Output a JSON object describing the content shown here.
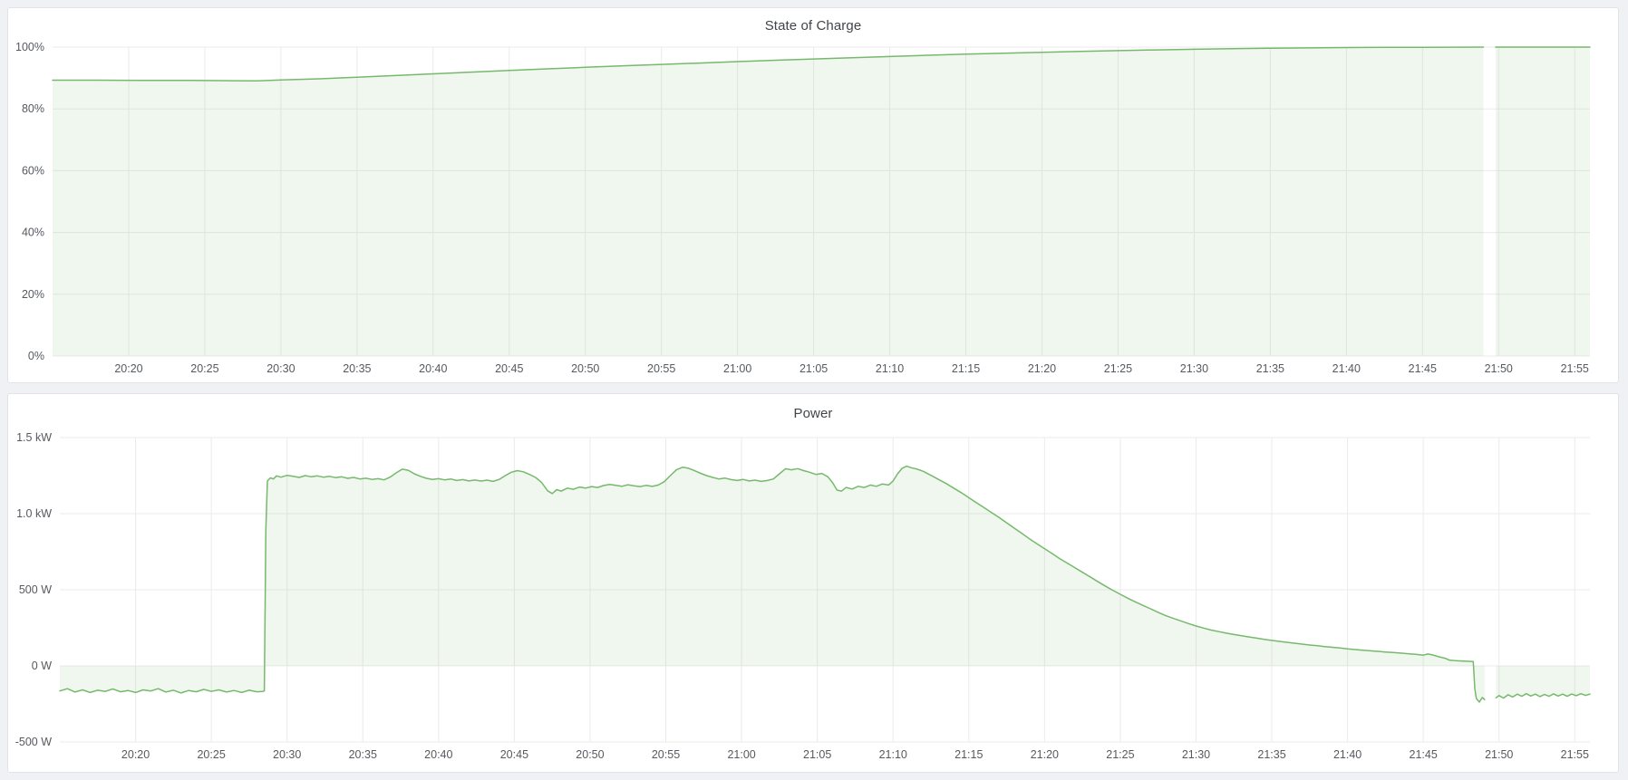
{
  "theme": {
    "page_background": "#f0f1f4",
    "panel_background": "#ffffff",
    "panel_border": "#e0e3e8",
    "grid_color": "#ebebeb",
    "title_color": "#414549",
    "tick_label_color": "#56595f",
    "line_color": "#76b96c",
    "fill_color": "rgba(118,185,108,0.11)"
  },
  "chart_data": [
    {
      "type": "area",
      "title": "State of Charge",
      "unit": "percent",
      "legend": "none",
      "grid": "on",
      "x_time_origin": "20:15",
      "x_domain_minutes": [
        0,
        101
      ],
      "ylim": [
        0,
        100
      ],
      "fill_to": 0,
      "data_gap_time": "21:49",
      "y_ticks": [
        {
          "v": 0,
          "label": "0%"
        },
        {
          "v": 20,
          "label": "20%"
        },
        {
          "v": 40,
          "label": "40%"
        },
        {
          "v": 60,
          "label": "60%"
        },
        {
          "v": 80,
          "label": "80%"
        },
        {
          "v": 100,
          "label": "100%"
        }
      ],
      "x_ticks": [
        {
          "t": 5,
          "label": "20:20"
        },
        {
          "t": 10,
          "label": "20:25"
        },
        {
          "t": 15,
          "label": "20:30"
        },
        {
          "t": 20,
          "label": "20:35"
        },
        {
          "t": 25,
          "label": "20:40"
        },
        {
          "t": 30,
          "label": "20:45"
        },
        {
          "t": 35,
          "label": "20:50"
        },
        {
          "t": 40,
          "label": "20:55"
        },
        {
          "t": 45,
          "label": "21:00"
        },
        {
          "t": 50,
          "label": "21:05"
        },
        {
          "t": 55,
          "label": "21:10"
        },
        {
          "t": 60,
          "label": "21:15"
        },
        {
          "t": 65,
          "label": "21:20"
        },
        {
          "t": 70,
          "label": "21:25"
        },
        {
          "t": 75,
          "label": "21:30"
        },
        {
          "t": 80,
          "label": "21:35"
        },
        {
          "t": 85,
          "label": "21:40"
        },
        {
          "t": 90,
          "label": "21:45"
        },
        {
          "t": 95,
          "label": "21:50"
        },
        {
          "t": 100,
          "label": "21:55"
        }
      ],
      "points": [
        [
          0,
          89.3
        ],
        [
          3,
          89.3
        ],
        [
          6,
          89.25
        ],
        [
          9,
          89.2
        ],
        [
          11,
          89.15
        ],
        [
          13,
          89.1
        ],
        [
          13.5,
          89.1
        ],
        [
          15,
          89.35
        ],
        [
          17.5,
          89.75
        ],
        [
          20,
          90.25
        ],
        [
          22.5,
          90.8
        ],
        [
          25,
          91.35
        ],
        [
          27.5,
          91.9
        ],
        [
          30,
          92.45
        ],
        [
          32.5,
          92.95
        ],
        [
          35,
          93.45
        ],
        [
          37.5,
          93.95
        ],
        [
          40,
          94.4
        ],
        [
          42.5,
          94.85
        ],
        [
          45,
          95.3
        ],
        [
          47.5,
          95.75
        ],
        [
          50,
          96.15
        ],
        [
          52.5,
          96.55
        ],
        [
          55,
          96.95
        ],
        [
          57.5,
          97.35
        ],
        [
          60,
          97.7
        ],
        [
          62.5,
          98.0
        ],
        [
          65,
          98.3
        ],
        [
          67.5,
          98.6
        ],
        [
          70,
          98.85
        ],
        [
          72.5,
          99.1
        ],
        [
          75,
          99.3
        ],
        [
          77.5,
          99.5
        ],
        [
          80,
          99.65
        ],
        [
          82.5,
          99.75
        ],
        [
          85,
          99.85
        ],
        [
          87.5,
          99.9
        ],
        [
          90,
          99.95
        ],
        [
          92,
          99.98
        ],
        [
          94.0,
          100
        ],
        [
          94.1,
          null
        ],
        [
          94.8,
          100
        ],
        [
          97,
          100
        ],
        [
          101,
          100
        ]
      ]
    },
    {
      "type": "area",
      "title": "Power",
      "unit": "watt",
      "legend": "none",
      "grid": "on",
      "x_time_origin": "20:15",
      "x_domain_minutes": [
        0,
        101
      ],
      "ylim": [
        -500,
        1500
      ],
      "fill_to": 0,
      "data_gap_time": "21:49",
      "y_ticks": [
        {
          "v": -500,
          "label": "-500 W"
        },
        {
          "v": 0,
          "label": "0 W"
        },
        {
          "v": 500,
          "label": "500 W"
        },
        {
          "v": 1000,
          "label": "1.0 kW"
        },
        {
          "v": 1500,
          "label": "1.5 kW"
        }
      ],
      "x_ticks": [
        {
          "t": 5,
          "label": "20:20"
        },
        {
          "t": 10,
          "label": "20:25"
        },
        {
          "t": 15,
          "label": "20:30"
        },
        {
          "t": 20,
          "label": "20:35"
        },
        {
          "t": 25,
          "label": "20:40"
        },
        {
          "t": 30,
          "label": "20:45"
        },
        {
          "t": 35,
          "label": "20:50"
        },
        {
          "t": 40,
          "label": "20:55"
        },
        {
          "t": 45,
          "label": "21:00"
        },
        {
          "t": 50,
          "label": "21:05"
        },
        {
          "t": 55,
          "label": "21:10"
        },
        {
          "t": 60,
          "label": "21:15"
        },
        {
          "t": 65,
          "label": "21:20"
        },
        {
          "t": 70,
          "label": "21:25"
        },
        {
          "t": 75,
          "label": "21:30"
        },
        {
          "t": 80,
          "label": "21:35"
        },
        {
          "t": 85,
          "label": "21:40"
        },
        {
          "t": 90,
          "label": "21:45"
        },
        {
          "t": 95,
          "label": "21:50"
        },
        {
          "t": 100,
          "label": "21:55"
        }
      ],
      "points": [
        [
          0,
          -165
        ],
        [
          0.5,
          -150
        ],
        [
          1,
          -172
        ],
        [
          1.5,
          -158
        ],
        [
          2,
          -175
        ],
        [
          2.5,
          -160
        ],
        [
          3,
          -168
        ],
        [
          3.5,
          -152
        ],
        [
          4,
          -170
        ],
        [
          4.5,
          -162
        ],
        [
          5,
          -175
        ],
        [
          5.5,
          -158
        ],
        [
          6,
          -165
        ],
        [
          6.5,
          -150
        ],
        [
          7,
          -172
        ],
        [
          7.5,
          -160
        ],
        [
          8,
          -178
        ],
        [
          8.5,
          -162
        ],
        [
          9,
          -170
        ],
        [
          9.5,
          -155
        ],
        [
          10,
          -168
        ],
        [
          10.5,
          -158
        ],
        [
          11,
          -172
        ],
        [
          11.5,
          -162
        ],
        [
          12,
          -175
        ],
        [
          12.5,
          -160
        ],
        [
          13,
          -170
        ],
        [
          13.4,
          -168
        ],
        [
          13.5,
          -165
        ],
        [
          13.6,
          900
        ],
        [
          13.7,
          1215
        ],
        [
          13.9,
          1235
        ],
        [
          14.1,
          1228
        ],
        [
          14.3,
          1248
        ],
        [
          14.6,
          1240
        ],
        [
          15,
          1252
        ],
        [
          15.4,
          1245
        ],
        [
          15.8,
          1238
        ],
        [
          16.2,
          1250
        ],
        [
          16.6,
          1242
        ],
        [
          17,
          1248
        ],
        [
          17.4,
          1240
        ],
        [
          17.8,
          1245
        ],
        [
          18.2,
          1237
        ],
        [
          18.6,
          1242
        ],
        [
          19,
          1232
        ],
        [
          19.4,
          1238
        ],
        [
          19.8,
          1228
        ],
        [
          20.2,
          1233
        ],
        [
          20.6,
          1225
        ],
        [
          21,
          1230
        ],
        [
          21.4,
          1222
        ],
        [
          21.8,
          1240
        ],
        [
          22.2,
          1268
        ],
        [
          22.6,
          1292
        ],
        [
          23,
          1285
        ],
        [
          23.4,
          1262
        ],
        [
          23.8,
          1245
        ],
        [
          24.2,
          1232
        ],
        [
          24.6,
          1225
        ],
        [
          25,
          1230
        ],
        [
          25.4,
          1222
        ],
        [
          25.8,
          1228
        ],
        [
          26.2,
          1218
        ],
        [
          26.6,
          1224
        ],
        [
          27,
          1215
        ],
        [
          27.4,
          1221
        ],
        [
          27.8,
          1214
        ],
        [
          28.2,
          1220
        ],
        [
          28.6,
          1212
        ],
        [
          29,
          1225
        ],
        [
          29.4,
          1250
        ],
        [
          29.8,
          1272
        ],
        [
          30.2,
          1283
        ],
        [
          30.6,
          1275
        ],
        [
          31,
          1258
        ],
        [
          31.4,
          1238
        ],
        [
          31.8,
          1205
        ],
        [
          32.2,
          1150
        ],
        [
          32.5,
          1132
        ],
        [
          32.8,
          1158
        ],
        [
          33.1,
          1148
        ],
        [
          33.5,
          1168
        ],
        [
          33.9,
          1160
        ],
        [
          34.3,
          1175
        ],
        [
          34.7,
          1168
        ],
        [
          35.1,
          1178
        ],
        [
          35.5,
          1172
        ],
        [
          35.9,
          1185
        ],
        [
          36.3,
          1192
        ],
        [
          36.7,
          1186
        ],
        [
          37.1,
          1180
        ],
        [
          37.5,
          1190
        ],
        [
          37.9,
          1183
        ],
        [
          38.3,
          1178
        ],
        [
          38.7,
          1186
        ],
        [
          39.1,
          1179
        ],
        [
          39.5,
          1188
        ],
        [
          39.9,
          1210
        ],
        [
          40.3,
          1250
        ],
        [
          40.7,
          1288
        ],
        [
          41.1,
          1305
        ],
        [
          41.5,
          1298
        ],
        [
          41.9,
          1282
        ],
        [
          42.3,
          1265
        ],
        [
          42.7,
          1250
        ],
        [
          43.1,
          1238
        ],
        [
          43.5,
          1228
        ],
        [
          43.9,
          1234
        ],
        [
          44.3,
          1224
        ],
        [
          44.7,
          1218
        ],
        [
          45.1,
          1225
        ],
        [
          45.5,
          1215
        ],
        [
          45.9,
          1220
        ],
        [
          46.3,
          1212
        ],
        [
          46.7,
          1218
        ],
        [
          47.1,
          1228
        ],
        [
          47.5,
          1262
        ],
        [
          47.9,
          1295
        ],
        [
          48.3,
          1288
        ],
        [
          48.7,
          1296
        ],
        [
          49.1,
          1283
        ],
        [
          49.5,
          1272
        ],
        [
          49.9,
          1258
        ],
        [
          50.3,
          1264
        ],
        [
          50.7,
          1242
        ],
        [
          51,
          1205
        ],
        [
          51.3,
          1155
        ],
        [
          51.6,
          1148
        ],
        [
          51.9,
          1172
        ],
        [
          52.3,
          1162
        ],
        [
          52.7,
          1180
        ],
        [
          53.1,
          1172
        ],
        [
          53.5,
          1188
        ],
        [
          53.9,
          1180
        ],
        [
          54.3,
          1195
        ],
        [
          54.7,
          1188
        ],
        [
          55,
          1215
        ],
        [
          55.3,
          1262
        ],
        [
          55.6,
          1298
        ],
        [
          55.9,
          1312
        ],
        [
          56.2,
          1302
        ],
        [
          56.6,
          1292
        ],
        [
          57,
          1278
        ],
        [
          57.5,
          1252
        ],
        [
          58,
          1225
        ],
        [
          58.5,
          1198
        ],
        [
          59,
          1168
        ],
        [
          59.5,
          1138
        ],
        [
          60,
          1105
        ],
        [
          60.5,
          1072
        ],
        [
          61,
          1040
        ],
        [
          61.5,
          1008
        ],
        [
          62,
          975
        ],
        [
          62.5,
          940
        ],
        [
          63,
          905
        ],
        [
          63.5,
          870
        ],
        [
          64,
          835
        ],
        [
          64.5,
          802
        ],
        [
          65,
          770
        ],
        [
          65.5,
          738
        ],
        [
          66,
          705
        ],
        [
          66.5,
          675
        ],
        [
          67,
          645
        ],
        [
          67.5,
          615
        ],
        [
          68,
          585
        ],
        [
          68.5,
          555
        ],
        [
          69,
          525
        ],
        [
          69.5,
          497
        ],
        [
          70,
          470
        ],
        [
          70.5,
          444
        ],
        [
          71,
          420
        ],
        [
          71.5,
          397
        ],
        [
          72,
          375
        ],
        [
          72.5,
          352
        ],
        [
          73,
          330
        ],
        [
          73.5,
          312
        ],
        [
          74,
          295
        ],
        [
          74.5,
          278
        ],
        [
          75,
          262
        ],
        [
          75.5,
          248
        ],
        [
          76,
          235
        ],
        [
          76.5,
          225
        ],
        [
          77,
          215
        ],
        [
          77.5,
          206
        ],
        [
          78,
          198
        ],
        [
          78.5,
          190
        ],
        [
          79,
          182
        ],
        [
          79.5,
          174
        ],
        [
          80,
          167
        ],
        [
          80.5,
          161
        ],
        [
          81,
          155
        ],
        [
          81.5,
          149
        ],
        [
          82,
          143
        ],
        [
          82.5,
          137
        ],
        [
          83,
          132
        ],
        [
          83.5,
          127
        ],
        [
          84,
          122
        ],
        [
          84.5,
          117
        ],
        [
          85,
          112
        ],
        [
          85.5,
          107
        ],
        [
          86,
          103
        ],
        [
          86.5,
          99
        ],
        [
          87,
          95
        ],
        [
          87.5,
          91
        ],
        [
          88,
          88
        ],
        [
          88.5,
          84
        ],
        [
          89,
          80
        ],
        [
          89.5,
          76
        ],
        [
          90,
          70
        ],
        [
          90.3,
          78
        ],
        [
          90.6,
          72
        ],
        [
          91,
          60
        ],
        [
          91.5,
          48
        ],
        [
          91.7,
          38
        ],
        [
          92,
          35
        ],
        [
          92.5,
          32
        ],
        [
          93,
          30
        ],
        [
          93.3,
          28
        ],
        [
          93.4,
          -150
        ],
        [
          93.5,
          -215
        ],
        [
          93.7,
          -238
        ],
        [
          93.9,
          -208
        ],
        [
          94.05,
          -222
        ],
        [
          94.15,
          null
        ],
        [
          94.8,
          -210
        ],
        [
          95,
          -195
        ],
        [
          95.3,
          -212
        ],
        [
          95.6,
          -190
        ],
        [
          95.9,
          -205
        ],
        [
          96.2,
          -186
        ],
        [
          96.5,
          -200
        ],
        [
          96.8,
          -183
        ],
        [
          97.1,
          -198
        ],
        [
          97.4,
          -186
        ],
        [
          97.7,
          -202
        ],
        [
          98,
          -188
        ],
        [
          98.3,
          -200
        ],
        [
          98.6,
          -184
        ],
        [
          98.9,
          -198
        ],
        [
          99.2,
          -186
        ],
        [
          99.5,
          -200
        ],
        [
          99.8,
          -185
        ],
        [
          100.1,
          -196
        ],
        [
          100.4,
          -183
        ],
        [
          100.7,
          -194
        ],
        [
          101,
          -186
        ]
      ]
    }
  ]
}
